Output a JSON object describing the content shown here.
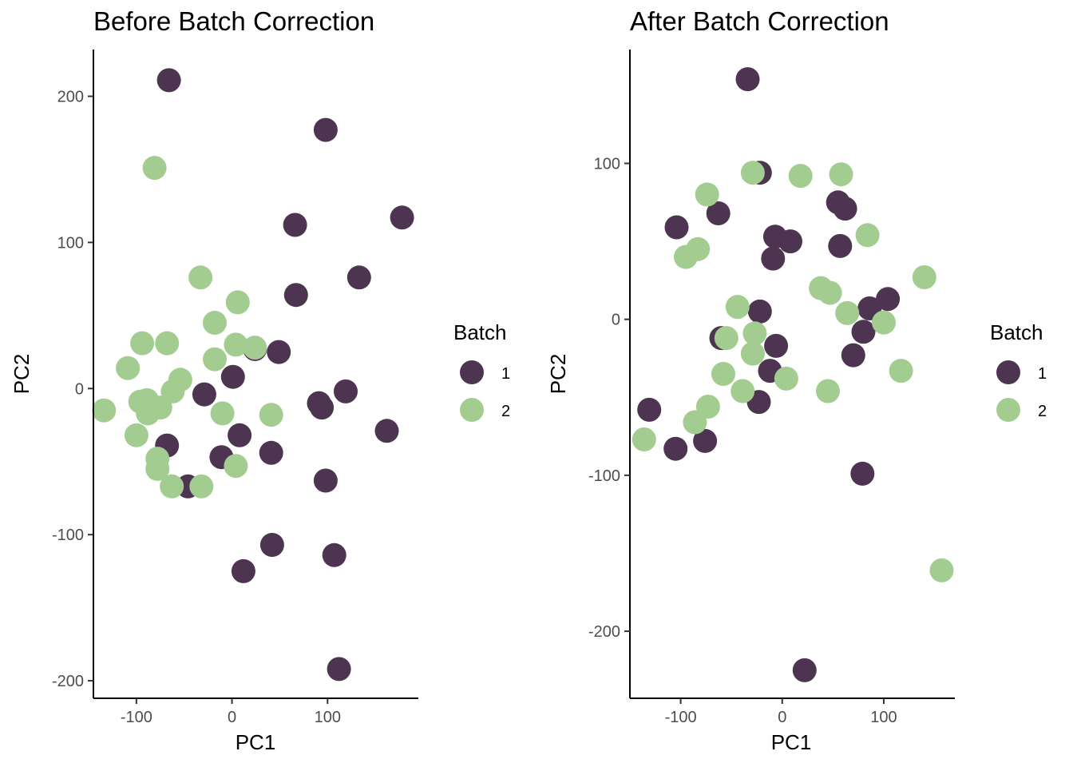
{
  "legend": {
    "title": "Batch",
    "entries": [
      {
        "label": "1",
        "color": "#4d3450"
      },
      {
        "label": "2",
        "color": "#a3cd90"
      }
    ]
  },
  "chart_data": [
    {
      "type": "scatter",
      "title": "Before Batch Correction",
      "xlabel": "PC1",
      "ylabel": "PC2",
      "xlim": [
        -145,
        195
      ],
      "ylim": [
        -212,
        232
      ],
      "xticks": [
        -100,
        0,
        100
      ],
      "yticks": [
        -200,
        -100,
        0,
        100,
        200
      ],
      "xtick_labels": [
        "-100",
        "0",
        "100"
      ],
      "ytick_labels": [
        "-200",
        "-100",
        "0",
        "100",
        "200"
      ],
      "grid": false,
      "legend_position": "right",
      "series": [
        {
          "name": "1",
          "color": "#4d3450",
          "points": [
            [
              -66,
              211
            ],
            [
              98,
              177
            ],
            [
              66,
              112
            ],
            [
              178,
              117
            ],
            [
              67,
              64
            ],
            [
              133,
              76
            ],
            [
              24,
              27
            ],
            [
              49,
              25
            ],
            [
              1,
              8
            ],
            [
              -29,
              -4
            ],
            [
              8,
              -32
            ],
            [
              -68,
              -39
            ],
            [
              -11,
              -47
            ],
            [
              41,
              -44
            ],
            [
              91,
              -10
            ],
            [
              94,
              -13
            ],
            [
              119,
              -2
            ],
            [
              162,
              -29
            ],
            [
              98,
              -63
            ],
            [
              -46,
              -67
            ],
            [
              42,
              -107
            ],
            [
              107,
              -114
            ],
            [
              12,
              -125
            ],
            [
              112,
              -192
            ]
          ]
        },
        {
          "name": "2",
          "color": "#a3cd90",
          "points": [
            [
              -81,
              151
            ],
            [
              -33,
              76
            ],
            [
              6,
              59
            ],
            [
              -18,
              45
            ],
            [
              -94,
              31
            ],
            [
              -68,
              31
            ],
            [
              4,
              30
            ],
            [
              -18,
              20
            ],
            [
              24,
              28
            ],
            [
              -109,
              14
            ],
            [
              -54,
              6
            ],
            [
              -62,
              -2
            ],
            [
              -89,
              -8
            ],
            [
              -96,
              -9
            ],
            [
              -75,
              -13
            ],
            [
              -88,
              -17
            ],
            [
              -134,
              -15
            ],
            [
              -10,
              -17
            ],
            [
              41,
              -18
            ],
            [
              -100,
              -32
            ],
            [
              -78,
              -48
            ],
            [
              -78,
              -55
            ],
            [
              4,
              -53
            ],
            [
              -63,
              -67
            ],
            [
              -32,
              -67
            ]
          ]
        }
      ]
    },
    {
      "type": "scatter",
      "title": "After Batch Correction",
      "xlabel": "PC1",
      "ylabel": "PC2",
      "xlim": [
        -150,
        170
      ],
      "ylim": [
        -243,
        173
      ],
      "xticks": [
        -100,
        0,
        100
      ],
      "yticks": [
        -200,
        -100,
        0,
        100
      ],
      "xtick_labels": [
        "-100",
        "0",
        "100"
      ],
      "ytick_labels": [
        "-200",
        "-100",
        "0",
        "100"
      ],
      "grid": false,
      "legend_position": "right",
      "series": [
        {
          "name": "1",
          "color": "#4d3450",
          "points": [
            [
              -34,
              154
            ],
            [
              -22,
              94
            ],
            [
              -63,
              68
            ],
            [
              -104,
              59
            ],
            [
              -7,
              53
            ],
            [
              8,
              50
            ],
            [
              -9,
              39
            ],
            [
              55,
              75
            ],
            [
              62,
              71
            ],
            [
              57,
              47
            ],
            [
              -22,
              5
            ],
            [
              104,
              13
            ],
            [
              86,
              7
            ],
            [
              80,
              -8
            ],
            [
              -60,
              -12
            ],
            [
              -6,
              -17
            ],
            [
              70,
              -23
            ],
            [
              -12,
              -33
            ],
            [
              -23,
              -53
            ],
            [
              -131,
              -58
            ],
            [
              -105,
              -83
            ],
            [
              -76,
              -78
            ],
            [
              79,
              -99
            ],
            [
              22,
              -225
            ]
          ]
        },
        {
          "name": "2",
          "color": "#a3cd90",
          "points": [
            [
              -74,
              80
            ],
            [
              -29,
              94
            ],
            [
              18,
              92
            ],
            [
              58,
              93
            ],
            [
              -83,
              45
            ],
            [
              -95,
              40
            ],
            [
              84,
              54
            ],
            [
              38,
              20
            ],
            [
              47,
              17
            ],
            [
              140,
              27
            ],
            [
              -44,
              8
            ],
            [
              -27,
              -9
            ],
            [
              -55,
              -12
            ],
            [
              -29,
              -22
            ],
            [
              64,
              4
            ],
            [
              100,
              -2
            ],
            [
              -58,
              -35
            ],
            [
              -39,
              -46
            ],
            [
              4,
              -38
            ],
            [
              45,
              -46
            ],
            [
              117,
              -33
            ],
            [
              -73,
              -56
            ],
            [
              -86,
              -66
            ],
            [
              -136,
              -77
            ],
            [
              157,
              -161
            ]
          ]
        }
      ]
    }
  ]
}
